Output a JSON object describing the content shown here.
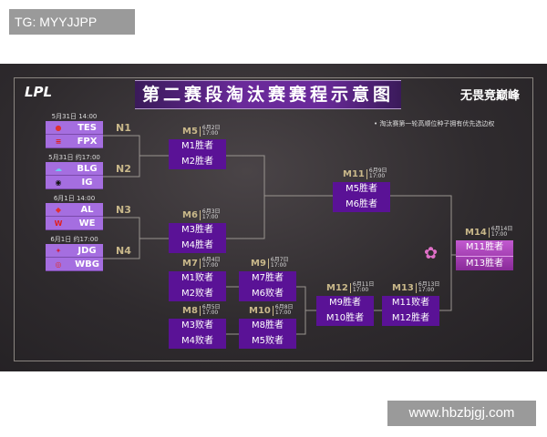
{
  "overlay_label": "TG: MYYJJPP",
  "watermark": "www.hbzbjgj.com",
  "poster": {
    "logo": "LPL",
    "title": "第二赛段淘汰赛赛程示意图",
    "slogan": "无畏竞巅峰",
    "note": "• 淘汰赛第一轮高顺位种子拥有优先选边权",
    "first_round": [
      {
        "date": "5月31日 14:00",
        "label": "N1",
        "teams": [
          "TES",
          "FPX"
        ]
      },
      {
        "date": "5月31日 约17:00",
        "label": "N2",
        "teams": [
          "BLG",
          "IG"
        ]
      },
      {
        "date": "6月1日 14:00",
        "label": "N3",
        "teams": [
          "AL",
          "WE"
        ]
      },
      {
        "date": "6月1日 约17:00",
        "label": "N4",
        "teams": [
          "JDG",
          "WBG"
        ]
      }
    ],
    "matches": {
      "m5": {
        "id": "M5",
        "date": "6月2日",
        "time": "17:00",
        "slots": [
          "M1胜者",
          "M2胜者"
        ]
      },
      "m6": {
        "id": "M6",
        "date": "6月3日",
        "time": "17:00",
        "slots": [
          "M3胜者",
          "M4胜者"
        ]
      },
      "m7": {
        "id": "M7",
        "date": "6月4日",
        "time": "17:00",
        "slots": [
          "M1败者",
          "M2败者"
        ]
      },
      "m8": {
        "id": "M8",
        "date": "6月5日",
        "time": "17:00",
        "slots": [
          "M3败者",
          "M4败者"
        ]
      },
      "m9": {
        "id": "M9",
        "date": "6月7日",
        "time": "17:00",
        "slots": [
          "M7胜者",
          "M6败者"
        ]
      },
      "m10": {
        "id": "M10",
        "date": "6月8日",
        "time": "17:00",
        "slots": [
          "M8胜者",
          "M5败者"
        ]
      },
      "m11": {
        "id": "M11",
        "date": "6月9日",
        "time": "17:00",
        "slots": [
          "M5胜者",
          "M6胜者"
        ]
      },
      "m12": {
        "id": "M12",
        "date": "6月11日",
        "time": "17:00",
        "slots": [
          "M9胜者",
          "M10胜者"
        ]
      },
      "m13": {
        "id": "M13",
        "date": "6月13日",
        "time": "17:00",
        "slots": [
          "M11败者",
          "M12胜者"
        ]
      },
      "m14": {
        "id": "M14",
        "date": "6月14日",
        "time": "17:00",
        "slots": [
          "M11胜者",
          "M13胜者"
        ]
      }
    },
    "colors": {
      "match_box": "#5a1296",
      "team_box": "#a56ee0",
      "final_box": "#c25ad0",
      "label_gold": "#c9b88a"
    }
  }
}
